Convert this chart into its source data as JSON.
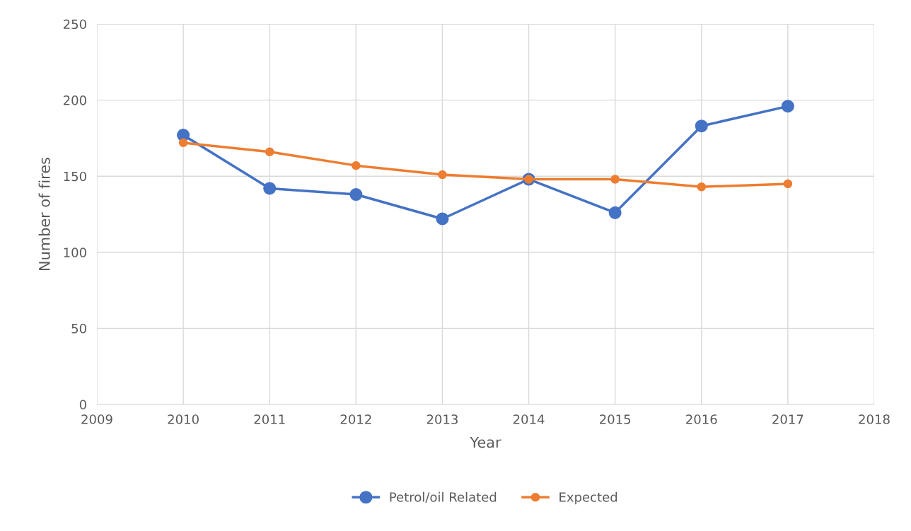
{
  "chart_data": {
    "type": "line",
    "xlabel": "Year",
    "ylabel": "Number of fires",
    "x": [
      2010,
      2011,
      2012,
      2013,
      2014,
      2015,
      2016,
      2017
    ],
    "series": [
      {
        "name": "Petrol/oil Related",
        "color": "#4472c4",
        "values": [
          177,
          142,
          138,
          122,
          148,
          126,
          183,
          196
        ]
      },
      {
        "name": "Expected",
        "color": "#ed7d31",
        "values": [
          172,
          166,
          157,
          151,
          148,
          148,
          143,
          145
        ]
      }
    ],
    "xlim": [
      2009,
      2018
    ],
    "xticks": [
      2009,
      2010,
      2011,
      2012,
      2013,
      2014,
      2015,
      2016,
      2017,
      2018
    ],
    "ylim": [
      0,
      250
    ],
    "yticks": [
      0,
      50,
      100,
      150,
      200,
      250
    ],
    "grid": true,
    "legend": "bottom",
    "marker": "circle",
    "line_style": "solid"
  }
}
